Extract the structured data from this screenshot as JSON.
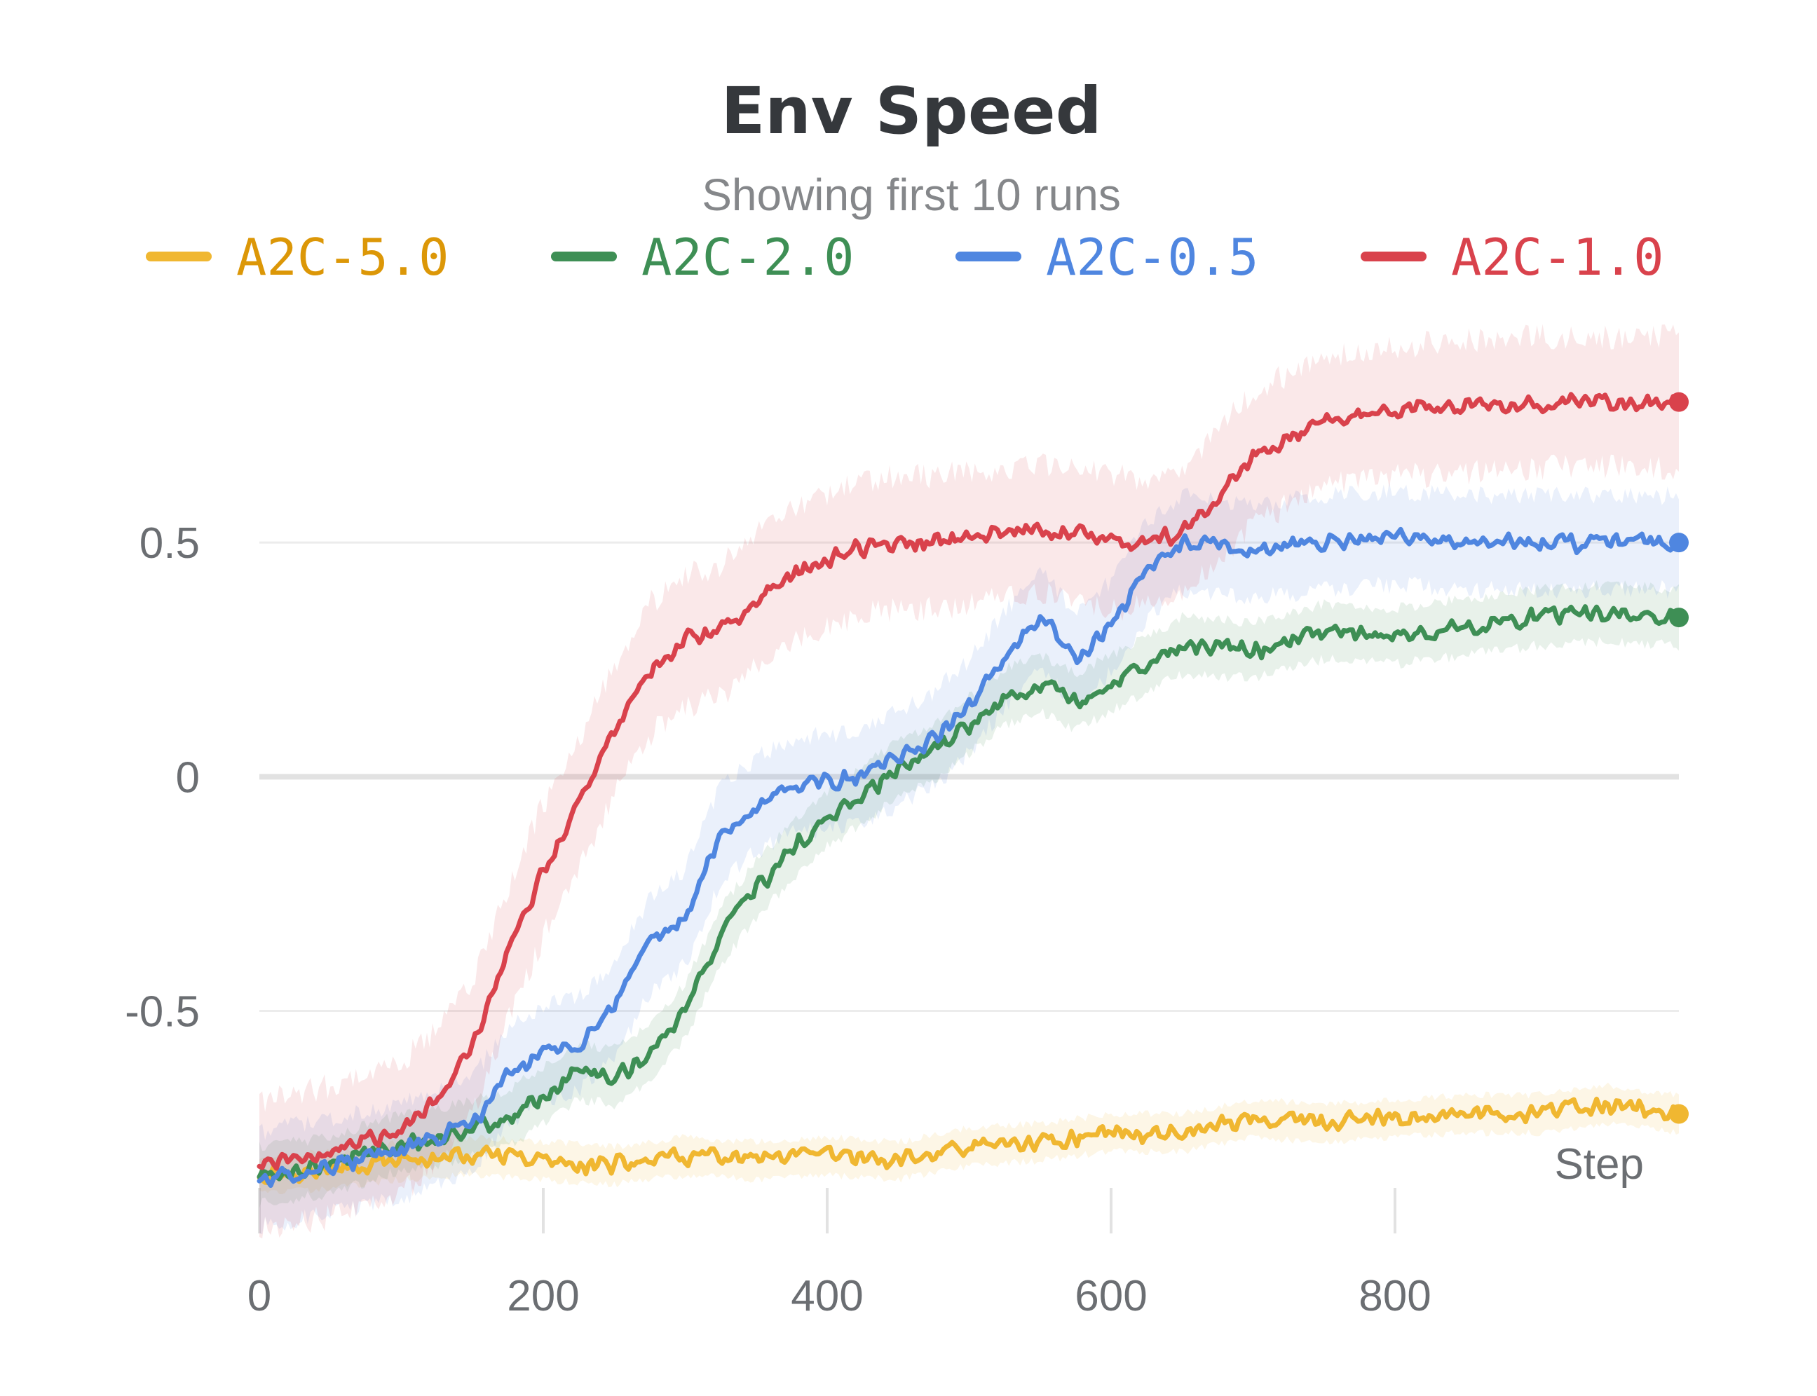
{
  "chart_data": {
    "type": "line",
    "title": "Env Speed",
    "subtitle": "Showing first 10 runs",
    "xlabel": "Step",
    "ylabel": "",
    "xlim": [
      0,
      1000
    ],
    "ylim": [
      -0.99,
      1.0
    ],
    "x_ticks": [
      0,
      200,
      400,
      600,
      800
    ],
    "x_tick_labels": [
      "0",
      "200",
      "400",
      "600",
      "800"
    ],
    "y_ticks": [
      -0.5,
      0,
      0.5
    ],
    "y_tick_labels": [
      "-0.5",
      "0",
      "0.5"
    ],
    "grid": true,
    "legend_position": "top",
    "series": [
      {
        "name": "A2C-5.0",
        "color": "#f0b731",
        "text_color": "#dc9707",
        "band": 0.04,
        "x": [
          0,
          50,
          100,
          150,
          200,
          250,
          300,
          350,
          400,
          450,
          500,
          550,
          600,
          650,
          700,
          750,
          800,
          850,
          900,
          950,
          1000
        ],
        "y": [
          -0.85,
          -0.84,
          -0.82,
          -0.81,
          -0.82,
          -0.83,
          -0.81,
          -0.82,
          -0.81,
          -0.82,
          -0.79,
          -0.78,
          -0.76,
          -0.76,
          -0.73,
          -0.74,
          -0.73,
          -0.72,
          -0.72,
          -0.7,
          -0.72
        ]
      },
      {
        "name": "A2C-2.0",
        "color": "#3e8f55",
        "text_color": "#3e8f55",
        "band": 0.06,
        "x": [
          0,
          50,
          100,
          125,
          150,
          175,
          200,
          225,
          250,
          275,
          300,
          325,
          350,
          375,
          400,
          425,
          450,
          475,
          500,
          525,
          550,
          575,
          600,
          625,
          650,
          700,
          750,
          800,
          850,
          900,
          950,
          1000
        ],
        "y": [
          -0.85,
          -0.83,
          -0.78,
          -0.77,
          -0.75,
          -0.73,
          -0.68,
          -0.63,
          -0.64,
          -0.59,
          -0.5,
          -0.34,
          -0.24,
          -0.16,
          -0.09,
          -0.04,
          0.02,
          0.05,
          0.11,
          0.17,
          0.2,
          0.16,
          0.2,
          0.24,
          0.28,
          0.27,
          0.31,
          0.3,
          0.32,
          0.34,
          0.35,
          0.34
        ]
      },
      {
        "name": "A2C-0.5",
        "color": "#4f86e0",
        "text_color": "#4f86e0",
        "band": 0.1,
        "x": [
          0,
          50,
          100,
          125,
          150,
          175,
          200,
          225,
          250,
          275,
          300,
          325,
          350,
          375,
          400,
          425,
          450,
          475,
          500,
          525,
          550,
          575,
          600,
          625,
          650,
          700,
          750,
          800,
          850,
          900,
          950,
          1000
        ],
        "y": [
          -0.86,
          -0.83,
          -0.8,
          -0.77,
          -0.74,
          -0.64,
          -0.59,
          -0.57,
          -0.5,
          -0.36,
          -0.3,
          -0.12,
          -0.06,
          -0.02,
          -0.01,
          0.0,
          0.04,
          0.08,
          0.15,
          0.25,
          0.34,
          0.25,
          0.32,
          0.44,
          0.5,
          0.48,
          0.5,
          0.51,
          0.5,
          0.5,
          0.5,
          0.5
        ]
      },
      {
        "name": "A2C-1.0",
        "color": "#d9424c",
        "text_color": "#d9424c",
        "band": 0.14,
        "x": [
          0,
          50,
          100,
          125,
          150,
          175,
          200,
          225,
          250,
          275,
          300,
          325,
          350,
          375,
          400,
          425,
          450,
          475,
          500,
          525,
          550,
          575,
          600,
          625,
          650,
          700,
          750,
          800,
          850,
          900,
          950,
          1000
        ],
        "y": [
          -0.83,
          -0.8,
          -0.75,
          -0.68,
          -0.58,
          -0.38,
          -0.2,
          -0.06,
          0.1,
          0.23,
          0.29,
          0.31,
          0.38,
          0.43,
          0.46,
          0.49,
          0.5,
          0.5,
          0.51,
          0.52,
          0.53,
          0.52,
          0.5,
          0.5,
          0.52,
          0.68,
          0.76,
          0.78,
          0.79,
          0.8,
          0.8,
          0.8
        ]
      }
    ]
  }
}
